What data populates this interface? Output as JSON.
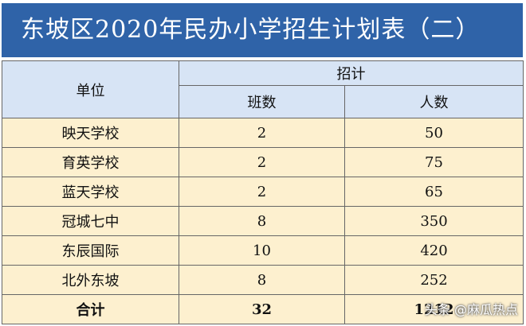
{
  "title": "东坡区2020年民办小学招生计划表（二）",
  "table": {
    "header": {
      "unit": "单位",
      "plan": "招计",
      "classes": "班数",
      "students": "人数"
    },
    "rows": [
      [
        "映天学校",
        "2",
        "50"
      ],
      [
        "育英学校",
        "2",
        "75"
      ],
      [
        "蓝天学校",
        "2",
        "65"
      ],
      [
        "冠城七中",
        "8",
        "350"
      ],
      [
        "东辰国际",
        "10",
        "420"
      ],
      [
        "北外东坡",
        "8",
        "252"
      ]
    ],
    "total": [
      "合计",
      "32",
      "1212"
    ]
  },
  "watermark": "头条 @麻瓜热点"
}
